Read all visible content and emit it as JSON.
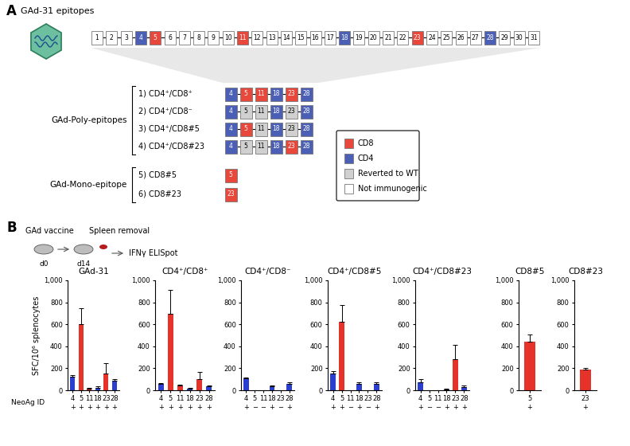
{
  "panel_a": {
    "label": "A",
    "title": "GAd-31 epitopes",
    "legend": [
      {
        "label": "CD8",
        "color": "#e8473b"
      },
      {
        "label": "CD4",
        "color": "#4a5fb5"
      },
      {
        "label": "Reverted to WT",
        "color": "#d0d0d0"
      },
      {
        "label": "Not immunogenic",
        "color": "#ffffff"
      }
    ],
    "row": {
      "ids": [
        1,
        2,
        3,
        4,
        5,
        6,
        7,
        8,
        9,
        10,
        11,
        12,
        13,
        14,
        15,
        16,
        17,
        18,
        19,
        20,
        21,
        22,
        23,
        24,
        25,
        26,
        27,
        28,
        29,
        30,
        31
      ],
      "status": [
        "Not immunogenic",
        "Not immunogenic",
        "Not immunogenic",
        "CD4",
        "CD8",
        "Not immunogenic",
        "Not immunogenic",
        "Not immunogenic",
        "Not immunogenic",
        "Not immunogenic",
        "CD8",
        "Not immunogenic",
        "Not immunogenic",
        "Not immunogenic",
        "Not immunogenic",
        "Not immunogenic",
        "Not immunogenic",
        "CD4",
        "Not immunogenic",
        "Not immunogenic",
        "Not immunogenic",
        "Not immunogenic",
        "CD8",
        "Not immunogenic",
        "Not immunogenic",
        "Not immunogenic",
        "Not immunogenic",
        "CD4",
        "Not immunogenic",
        "Not immunogenic",
        "Not immunogenic"
      ]
    },
    "groups": [
      {
        "label": "GAd-Poly-epitopes",
        "constructs": [
          {
            "name": "1) CD4⁺/CD8⁺",
            "epitopes": [
              4,
              5,
              11,
              18,
              23,
              28
            ],
            "status": [
              "CD4",
              "CD8",
              "CD8",
              "CD4",
              "CD8",
              "CD4"
            ]
          },
          {
            "name": "2) CD4⁺/CD8⁻",
            "epitopes": [
              4,
              5,
              11,
              18,
              23,
              28
            ],
            "status": [
              "CD4",
              "Reverted to WT",
              "Reverted to WT",
              "CD4",
              "Reverted to WT",
              "CD4"
            ]
          },
          {
            "name": "3) CD4⁺/CD8#5",
            "epitopes": [
              4,
              5,
              11,
              18,
              23,
              28
            ],
            "status": [
              "CD4",
              "CD8",
              "Reverted to WT",
              "CD4",
              "Reverted to WT",
              "CD4"
            ]
          },
          {
            "name": "4) CD4⁺/CD8#23",
            "epitopes": [
              4,
              5,
              11,
              18,
              23,
              28
            ],
            "status": [
              "CD4",
              "Reverted to WT",
              "Reverted to WT",
              "CD4",
              "CD8",
              "CD4"
            ]
          }
        ]
      },
      {
        "label": "GAd-Mono-epitope",
        "constructs": [
          {
            "name": "5) CD8#5",
            "epitopes": [
              5
            ],
            "status": [
              "CD8"
            ]
          },
          {
            "name": "6) CD8#23",
            "epitopes": [
              23
            ],
            "status": [
              "CD8"
            ]
          }
        ]
      }
    ]
  },
  "panel_b_schematic": {
    "label": "B",
    "texts": {
      "vaccine": "GAd vaccine",
      "spleen": "Spleen removal",
      "day0": "d0",
      "day14": "d14",
      "assay": "IFNγ ELISpot"
    }
  },
  "chart_data": [
    {
      "type": "bar",
      "title": "GAd-31",
      "y_label": "SFC/10⁶ splenocytes",
      "x_label": "NeoAg ID",
      "categories": [
        "4",
        "5",
        "11",
        "18",
        "23",
        "28"
      ],
      "vaccine_content": [
        "+",
        "+",
        "+",
        "+",
        "+",
        "+"
      ],
      "values": [
        120,
        600,
        15,
        25,
        155,
        85
      ],
      "errors": [
        20,
        145,
        5,
        10,
        90,
        15
      ],
      "colors": [
        "#2a3fcf",
        "#e5332a",
        "#e5332a",
        "#2a3fcf",
        "#e5332a",
        "#2a3fcf"
      ],
      "ylim": [
        0,
        1000
      ],
      "yticks": [
        0,
        200,
        400,
        600,
        800,
        {
          "value": 1000,
          "label": "1,000"
        }
      ]
    },
    {
      "type": "bar",
      "title": "CD4⁺/CD8⁺",
      "categories": [
        "4",
        "5",
        "11",
        "18",
        "23",
        "28"
      ],
      "vaccine_content": [
        "+",
        "+",
        "+",
        "+",
        "+",
        "+"
      ],
      "values": [
        55,
        695,
        45,
        15,
        105,
        35
      ],
      "errors": [
        10,
        220,
        8,
        5,
        60,
        8
      ],
      "colors": [
        "#2a3fcf",
        "#e5332a",
        "#e5332a",
        "#2a3fcf",
        "#e5332a",
        "#2a3fcf"
      ],
      "ylim": [
        0,
        1000
      ],
      "yticks": [
        0,
        200,
        400,
        600,
        800,
        {
          "value": 1000,
          "label": "1,000"
        }
      ]
    },
    {
      "type": "bar",
      "title": "CD4⁺/CD8⁻",
      "categories": [
        "4",
        "5",
        "11",
        "18",
        "23",
        "28"
      ],
      "vaccine_content": [
        "+",
        "−",
        "−",
        "+",
        "−",
        "+"
      ],
      "values": [
        110,
        0,
        0,
        35,
        0,
        55
      ],
      "errors": [
        5,
        0,
        0,
        8,
        0,
        15
      ],
      "colors": [
        "#2a3fcf",
        "#e5332a",
        "#e5332a",
        "#2a3fcf",
        "#e5332a",
        "#2a3fcf"
      ],
      "ylim": [
        0,
        1000
      ],
      "yticks": [
        0,
        200,
        400,
        600,
        800,
        {
          "value": 1000,
          "label": "1,000"
        }
      ]
    },
    {
      "type": "bar",
      "title": "CD4⁺/CD8#5",
      "categories": [
        "4",
        "5",
        "11",
        "18",
        "23",
        "28"
      ],
      "vaccine_content": [
        "+",
        "+",
        "−",
        "+",
        "−",
        "+"
      ],
      "values": [
        150,
        625,
        0,
        60,
        0,
        60
      ],
      "errors": [
        25,
        150,
        0,
        15,
        0,
        10
      ],
      "colors": [
        "#2a3fcf",
        "#e5332a",
        "#e5332a",
        "#2a3fcf",
        "#e5332a",
        "#2a3fcf"
      ],
      "ylim": [
        0,
        1000
      ],
      "yticks": [
        0,
        200,
        400,
        600,
        800,
        {
          "value": 1000,
          "label": "1,000"
        }
      ]
    },
    {
      "type": "bar",
      "title": "CD4⁺/CD8#23",
      "categories": [
        "4",
        "5",
        "11",
        "18",
        "23",
        "28"
      ],
      "vaccine_content": [
        "+",
        "−",
        "−",
        "+",
        "+",
        "+"
      ],
      "values": [
        75,
        0,
        0,
        10,
        285,
        30
      ],
      "errors": [
        25,
        0,
        0,
        5,
        130,
        10
      ],
      "colors": [
        "#2a3fcf",
        "#e5332a",
        "#e5332a",
        "#2a3fcf",
        "#e5332a",
        "#2a3fcf"
      ],
      "ylim": [
        0,
        1000
      ],
      "yticks": [
        0,
        200,
        400,
        600,
        800,
        {
          "value": 1000,
          "label": "1,000"
        }
      ]
    },
    {
      "type": "bar",
      "title": "CD8#5",
      "categories": [
        "5"
      ],
      "vaccine_content": [
        "+"
      ],
      "values": [
        440
      ],
      "errors": [
        70
      ],
      "colors": [
        "#e5332a"
      ],
      "ylim": [
        0,
        1000
      ],
      "yticks": [
        0,
        200,
        400,
        600,
        800,
        {
          "value": 1000,
          "label": "1,000"
        }
      ]
    },
    {
      "type": "bar",
      "title": "CD8#23",
      "categories": [
        "23"
      ],
      "vaccine_content": [
        "+"
      ],
      "values": [
        185
      ],
      "errors": [
        15
      ],
      "colors": [
        "#e5332a"
      ],
      "ylim": [
        0,
        1000
      ],
      "yticks": [
        0,
        200,
        400,
        600,
        800,
        {
          "value": 1000,
          "label": "1,000"
        }
      ]
    }
  ]
}
